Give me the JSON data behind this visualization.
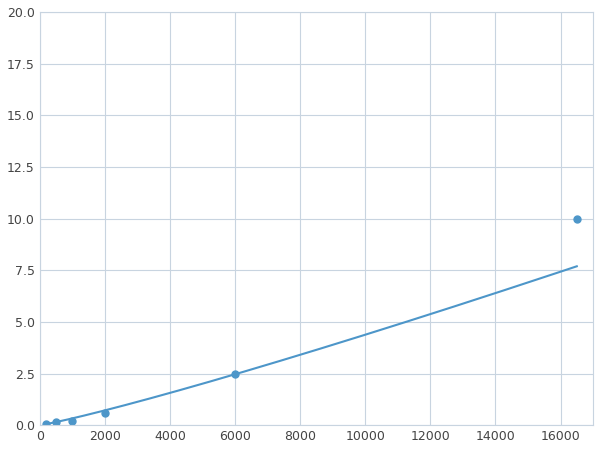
{
  "x": [
    200,
    500,
    1000,
    2000,
    6000,
    16500
  ],
  "y": [
    0.08,
    0.15,
    0.2,
    0.6,
    2.5,
    10.0
  ],
  "line_color": "#4d96c9",
  "marker_color": "#4d96c9",
  "marker_size": 5,
  "line_width": 1.5,
  "xlim": [
    0,
    17000
  ],
  "ylim": [
    0,
    20.0
  ],
  "xticks": [
    0,
    2000,
    4000,
    6000,
    8000,
    10000,
    12000,
    14000,
    16000
  ],
  "yticks": [
    0.0,
    2.5,
    5.0,
    7.5,
    10.0,
    12.5,
    15.0,
    17.5,
    20.0
  ],
  "grid_color": "#c8d4e0",
  "background_color": "#ffffff",
  "figsize": [
    6.0,
    4.5
  ],
  "dpi": 100
}
